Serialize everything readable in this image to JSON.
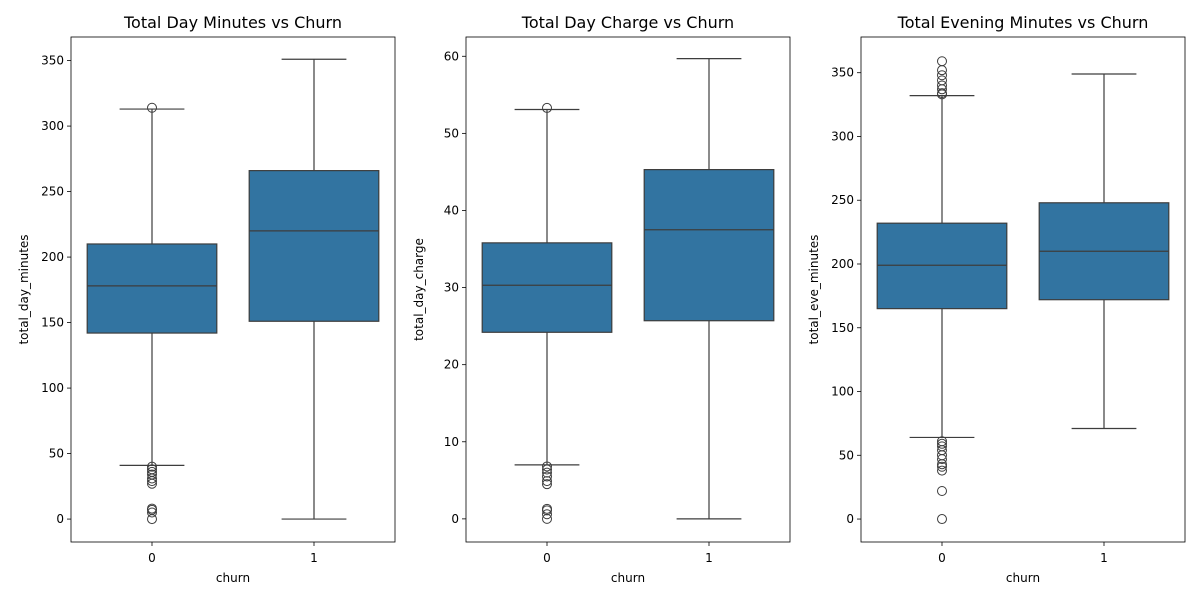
{
  "chart_data": [
    {
      "type": "box",
      "title": "Total Day Minutes vs Churn",
      "xlabel": "churn",
      "ylabel": "total_day_minutes",
      "ylim": [
        -17.5,
        368
      ],
      "yticks": [
        0,
        50,
        100,
        150,
        200,
        250,
        300,
        350
      ],
      "categories": [
        "0",
        "1"
      ],
      "color": "#3274a1",
      "boxes": [
        {
          "category": "0",
          "whisker_low": 41,
          "q1": 142,
          "median": 178,
          "q3": 210,
          "whisker_high": 313,
          "outliers": [
            314,
            40,
            38,
            36,
            34,
            31,
            29,
            27,
            8,
            7,
            5,
            0
          ]
        },
        {
          "category": "1",
          "whisker_low": 0,
          "q1": 151,
          "median": 220,
          "q3": 266,
          "whisker_high": 351,
          "outliers": []
        }
      ]
    },
    {
      "type": "box",
      "title": "Total Day Charge vs Churn",
      "xlabel": "churn",
      "ylabel": "total_day_charge",
      "ylim": [
        -3,
        62.5
      ],
      "yticks": [
        0,
        10,
        20,
        30,
        40,
        50,
        60
      ],
      "categories": [
        "0",
        "1"
      ],
      "color": "#3274a1",
      "boxes": [
        {
          "category": "0",
          "whisker_low": 7,
          "q1": 24.2,
          "median": 30.3,
          "q3": 35.8,
          "whisker_high": 53.1,
          "outliers": [
            53.3,
            6.8,
            6.4,
            6.0,
            5.5,
            4.9,
            4.5,
            1.3,
            1.1,
            0.6,
            0
          ]
        },
        {
          "category": "1",
          "whisker_low": 0,
          "q1": 25.7,
          "median": 37.5,
          "q3": 45.3,
          "whisker_high": 59.7,
          "outliers": []
        }
      ]
    },
    {
      "type": "box",
      "title": "Total Evening Minutes vs Churn",
      "xlabel": "churn",
      "ylabel": "total_eve_minutes",
      "ylim": [
        -18,
        378
      ],
      "yticks": [
        0,
        50,
        100,
        150,
        200,
        250,
        300,
        350
      ],
      "categories": [
        "0",
        "1"
      ],
      "color": "#3274a1",
      "boxes": [
        {
          "category": "0",
          "whisker_low": 64,
          "q1": 165,
          "median": 199,
          "q3": 232,
          "whisker_high": 332,
          "outliers": [
            359,
            352,
            348,
            344,
            340,
            337,
            334,
            333,
            61,
            59,
            57,
            54,
            50,
            47,
            43,
            41,
            38,
            22,
            0
          ]
        },
        {
          "category": "1",
          "whisker_low": 71,
          "q1": 172,
          "median": 210,
          "q3": 248,
          "whisker_high": 349,
          "outliers": []
        }
      ]
    }
  ]
}
